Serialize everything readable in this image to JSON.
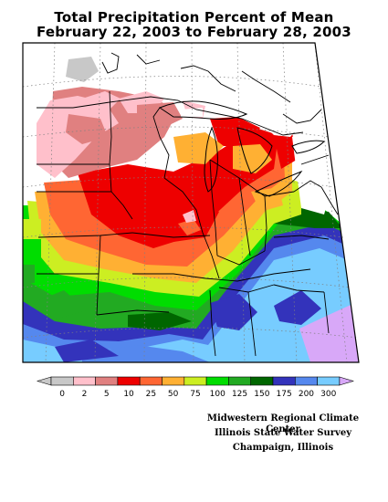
{
  "title": {
    "line1": "Total Precipitation Percent of Mean",
    "line2": "February 22, 2003 to February 28, 2003"
  },
  "legend": {
    "items": [
      {
        "label": "0",
        "color": "#c8c8c8"
      },
      {
        "label": "2",
        "color": "#ffc0cb"
      },
      {
        "label": "5",
        "color": "#e08080"
      },
      {
        "label": "10",
        "color": "#ee0000"
      },
      {
        "label": "25",
        "color": "#ff6633"
      },
      {
        "label": "50",
        "color": "#ffb033"
      },
      {
        "label": "75",
        "color": "#ccee22"
      },
      {
        "label": "100",
        "color": "#00dd00"
      },
      {
        "label": "125",
        "color": "#22aa22"
      },
      {
        "label": "150",
        "color": "#006600"
      },
      {
        "label": "175",
        "color": "#3333bb"
      },
      {
        "label": "200",
        "color": "#5588ee"
      },
      {
        "label": "300",
        "color": "#77ccff"
      }
    ],
    "overflow_color": "#d8a8f8"
  },
  "credits": {
    "line1": "Midwestern Regional Climate Center",
    "line2": "Illinois State Water Survey",
    "line3": "Champaign, Illinois"
  }
}
